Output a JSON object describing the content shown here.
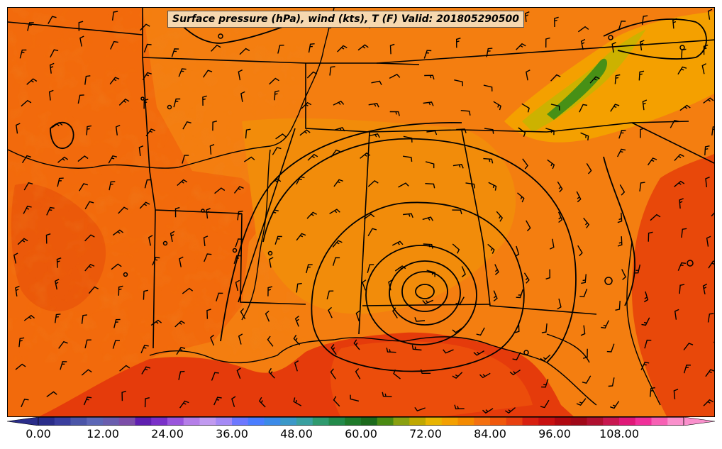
{
  "title": "Surface pressure (hPa), wind (kts), T (F) Valid: 201805290500",
  "map": {
    "variable_fill": "Temperature (F)",
    "contour_variable": "Surface pressure (hPa)",
    "barb_variable": "Wind (kts)",
    "region": "South-central and southeastern United States with Gulf of Mexico",
    "colors": {
      "land_base": "#f47e10",
      "land_warm": "#f26a0c",
      "land_hot": "#e8480a",
      "gulf": "#e53b0b",
      "mountain_cool": "#f4a000",
      "mountain_cooler": "#c8b400",
      "mountain_coldest": "#2f8a1a",
      "lines": "#000000"
    }
  },
  "colorbar": {
    "ticks": [
      "0.00",
      "12.00",
      "24.00",
      "36.00",
      "48.00",
      "60.00",
      "72.00",
      "84.00",
      "96.00",
      "108.00"
    ],
    "tick_values": [
      0,
      12,
      24,
      36,
      48,
      60,
      72,
      84,
      96,
      108
    ],
    "range": [
      0,
      120
    ],
    "colors": [
      "#2a2d8a",
      "#3a3e9e",
      "#4b55a8",
      "#5d67b6",
      "#6a5eae",
      "#7c4ea8",
      "#5f1fb0",
      "#7a30c8",
      "#9a55dc",
      "#b57ee8",
      "#c19af0",
      "#a58af5",
      "#6d78ff",
      "#4a7dff",
      "#3b8ae8",
      "#3b98c8",
      "#3aa0a0",
      "#2f9a6e",
      "#238a4a",
      "#1f7a2a",
      "#1c6a1c",
      "#4a8a12",
      "#8aa010",
      "#c0a800",
      "#e8b400",
      "#f4a000",
      "#f48a00",
      "#f47010",
      "#f0580c",
      "#e84010",
      "#d82010",
      "#c81010",
      "#b00810",
      "#a00818",
      "#b01030",
      "#c81850",
      "#e01878",
      "#f0309a",
      "#f760b4",
      "#fa90cc"
    ]
  }
}
